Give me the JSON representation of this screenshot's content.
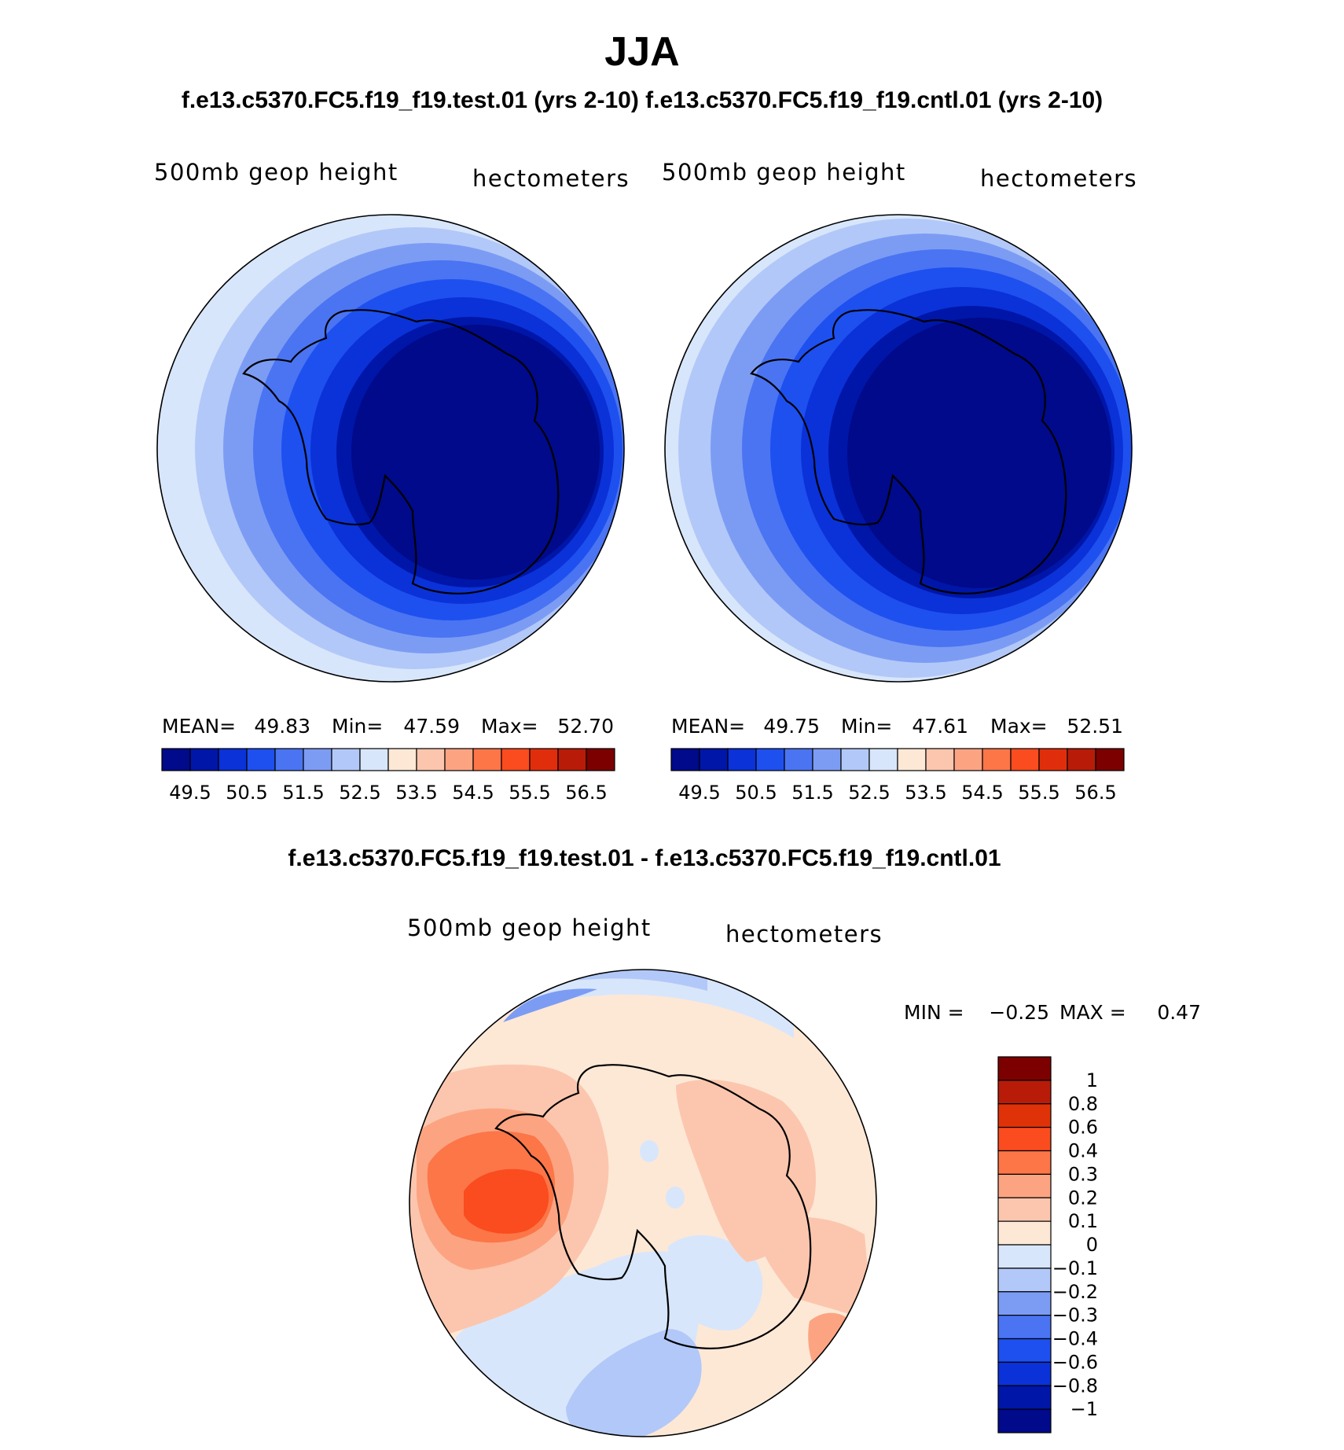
{
  "figure": {
    "season": "JJA",
    "subtitle": "f.e13.c5370.FC5.f19_f19.test.01 (yrs 2-10) f.e13.c5370.FC5.f19_f19.cntl.01 (yrs 2-10)",
    "diff_title": "f.e13.c5370.FC5.f19_f19.test.01 - f.e13.c5370.FC5.f19_f19.cntl.01"
  },
  "chart_data": [
    {
      "type": "heatmap",
      "projection": "south-polar-stereographic",
      "panel": "test",
      "left_title": "500mb geop height",
      "right_title": "hectometers",
      "stats": {
        "mean_label": "MEAN=",
        "mean": "49.83",
        "min_label": "Min=",
        "min": "47.59",
        "max_label": "Max=",
        "max": "52.70"
      },
      "contour_levels": [
        49.5,
        50,
        50.5,
        51,
        51.5,
        52,
        52.5,
        53,
        53.5,
        54,
        54.5,
        55,
        55.5,
        56,
        56.5
      ],
      "colorbar_labels": [
        "49.5",
        "50.5",
        "51.5",
        "52.5",
        "53.5",
        "54.5",
        "55.5",
        "56.5"
      ]
    },
    {
      "type": "heatmap",
      "projection": "south-polar-stereographic",
      "panel": "control",
      "left_title": "500mb geop height",
      "right_title": "hectometers",
      "stats": {
        "mean_label": "MEAN=",
        "mean": "49.75",
        "min_label": "Min=",
        "min": "47.61",
        "max_label": "Max=",
        "max": "52.51"
      },
      "contour_levels": [
        49.5,
        50,
        50.5,
        51,
        51.5,
        52,
        52.5,
        53,
        53.5,
        54,
        54.5,
        55,
        55.5,
        56,
        56.5
      ],
      "colorbar_labels": [
        "49.5",
        "50.5",
        "51.5",
        "52.5",
        "53.5",
        "54.5",
        "55.5",
        "56.5"
      ]
    },
    {
      "type": "heatmap",
      "projection": "south-polar-stereographic",
      "panel": "difference",
      "left_title": "500mb geop height",
      "right_title": "hectometers",
      "stats": {
        "min_label": "MIN =",
        "min": "−0.25",
        "max_label": "MAX =",
        "max": "0.47"
      },
      "contour_levels": [
        -1,
        -0.8,
        -0.6,
        -0.4,
        -0.3,
        -0.2,
        -0.1,
        0,
        0.1,
        0.2,
        0.3,
        0.4,
        0.6,
        0.8,
        1
      ],
      "colorbar_labels": [
        "1",
        "0.8",
        "0.6",
        "0.4",
        "0.3",
        "0.2",
        "0.1",
        "0",
        "−0.1",
        "−0.2",
        "−0.3",
        "−0.4",
        "−0.6",
        "−0.8",
        "−1"
      ]
    }
  ],
  "colors": {
    "mean_palette": [
      "#000a8a",
      "#0016a8",
      "#0a32d8",
      "#1e50f0",
      "#4a74f2",
      "#7c9cf4",
      "#b2c8f8",
      "#d8e6fb",
      "#fde8d6",
      "#fcc6ae",
      "#fca482",
      "#fc7648",
      "#fa4c1e",
      "#e02e0c",
      "#b81c08",
      "#7c0000"
    ],
    "diff_palette": [
      "#7c0000",
      "#b81c08",
      "#e03208",
      "#fa4c1e",
      "#fc7648",
      "#fca482",
      "#fcc6ae",
      "#fde8d6",
      "#d8e6fb",
      "#b2c8f8",
      "#7c9cf4",
      "#4a74f2",
      "#1e50f0",
      "#0a32d8",
      "#0016a8",
      "#000a8a"
    ],
    "coast": "#000000"
  }
}
